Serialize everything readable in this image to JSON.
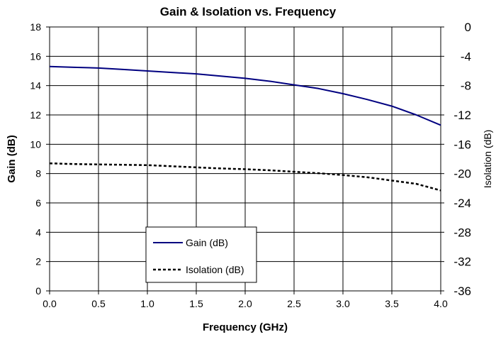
{
  "chart_data": {
    "type": "line",
    "title": "Gain & Isolation vs. Frequency",
    "xlabel": "Frequency (GHz)",
    "ylabel": "Gain (dB)",
    "ylabel_right": "Isolation (dB)",
    "xlim": [
      0.0,
      4.0
    ],
    "ylim": [
      0,
      18
    ],
    "ylim_right": [
      -36,
      0
    ],
    "x_ticks": [
      "0.0",
      "0.5",
      "1.0",
      "1.5",
      "2.0",
      "2.5",
      "3.0",
      "3.5",
      "4.0"
    ],
    "y_ticks_left": [
      "0",
      "2",
      "4",
      "6",
      "8",
      "10",
      "12",
      "14",
      "16",
      "18"
    ],
    "y_ticks_right": [
      "-36",
      "-32",
      "-28",
      "-24",
      "-20",
      "-16",
      "-12",
      "-8",
      "-4",
      "0"
    ],
    "grid": true,
    "legend_position": "bottom-center",
    "x": [
      0.0,
      0.25,
      0.5,
      0.75,
      1.0,
      1.25,
      1.5,
      1.75,
      2.0,
      2.25,
      2.5,
      2.75,
      3.0,
      3.25,
      3.5,
      3.75,
      4.0
    ],
    "series": [
      {
        "name": "Gain (dB)",
        "axis": "left",
        "color": "#000080",
        "style": "solid",
        "values": [
          15.3,
          15.25,
          15.2,
          15.1,
          15.0,
          14.9,
          14.8,
          14.65,
          14.5,
          14.3,
          14.05,
          13.8,
          13.45,
          13.05,
          12.6,
          12.0,
          11.3
        ]
      },
      {
        "name": "Isolation (dB)",
        "axis": "right",
        "color": "#000000",
        "style": "dashed",
        "values": [
          -18.6,
          -18.7,
          -18.75,
          -18.8,
          -18.85,
          -19.0,
          -19.15,
          -19.3,
          -19.4,
          -19.55,
          -19.75,
          -19.95,
          -20.2,
          -20.5,
          -20.95,
          -21.4,
          -22.3
        ]
      }
    ]
  }
}
